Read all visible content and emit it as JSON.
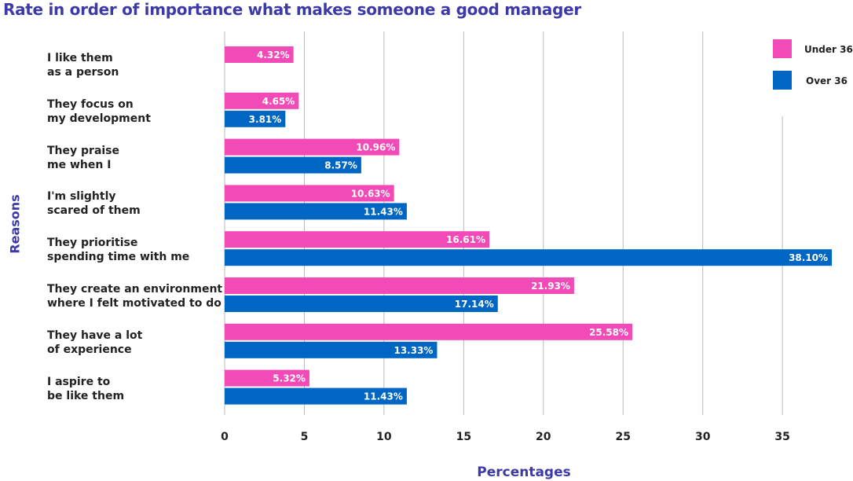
{
  "chart_data": {
    "type": "bar",
    "orientation": "horizontal",
    "title": "Rate in order of importance what makes someone a good manager",
    "xlabel": "Percentages",
    "ylabel": "Reasons",
    "xlim": [
      0,
      38
    ],
    "xticks": [
      0,
      5,
      10,
      15,
      20,
      25,
      30,
      35
    ],
    "grid": "vertical",
    "legend_position": "top-right",
    "categories": [
      [
        "I like them",
        "as a person"
      ],
      [
        "They focus on",
        "my development"
      ],
      [
        "They praise",
        "me when I"
      ],
      [
        "I'm slightly",
        "scared of them"
      ],
      [
        "They prioritise",
        "spending time with me"
      ],
      [
        "They create an environment",
        "where I felt motivated to do"
      ],
      [
        "They have a lot",
        "of experience"
      ],
      [
        "I aspire to",
        "be like them"
      ]
    ],
    "series": [
      {
        "name": "Under 36",
        "color": "#f24bb8",
        "values": [
          4.32,
          4.65,
          10.96,
          10.63,
          16.61,
          21.93,
          25.58,
          5.32
        ],
        "labels": [
          "4.32%",
          "4.65%",
          "10.96%",
          "10.63%",
          "16.61%",
          "21.93%",
          "25.58%",
          "5.32%"
        ]
      },
      {
        "name": "Over 36",
        "color": "#0066c4",
        "values": [
          null,
          3.81,
          8.57,
          11.43,
          38.1,
          17.14,
          13.33,
          11.43
        ],
        "labels": [
          null,
          "3.81%",
          "8.57%",
          "11.43%",
          "38.10%",
          "17.14%",
          "13.33%",
          "11.43%"
        ]
      }
    ]
  }
}
